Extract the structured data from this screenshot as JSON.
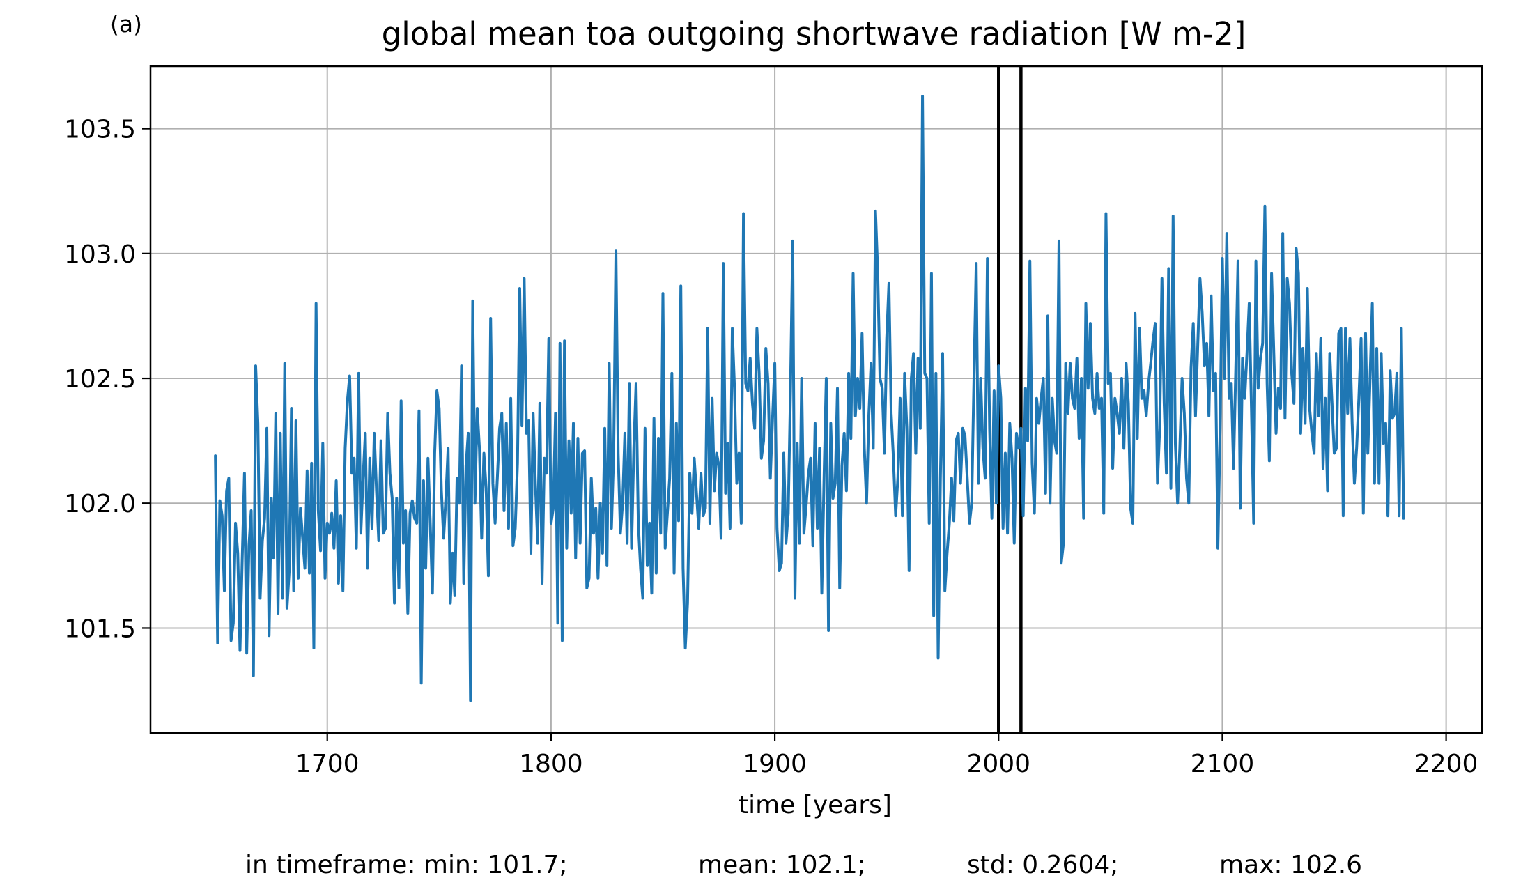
{
  "panel_label": "(a)",
  "stats_line": {
    "min": "in timeframe: min: 101.7;",
    "mean": "mean: 102.1;",
    "std": "std: 0.2604;",
    "max": "max: 102.6"
  },
  "colors": {
    "series": "#1f77b4",
    "grid": "#b0b0b0",
    "marker_lines": "#000000"
  },
  "chart_data": {
    "type": "line",
    "title": "global mean toa outgoing shortwave radiation [W m-2]",
    "xlabel": "time [years]",
    "ylabel": "",
    "xlim": [
      1621,
      2216
    ],
    "ylim": [
      101.08,
      103.75
    ],
    "xticks": [
      1700,
      1800,
      1900,
      2000,
      2100,
      2200
    ],
    "yticks": [
      101.5,
      102.0,
      102.5,
      103.0,
      103.5
    ],
    "ytick_labels": [
      "101.5",
      "102.0",
      "102.5",
      "103.0",
      "103.5"
    ],
    "grid": true,
    "vertical_lines": [
      2000,
      2010
    ],
    "series": [
      {
        "x_start": 1650,
        "x_step": 1,
        "values": [
          102.19,
          101.44,
          102.01,
          101.95,
          101.65,
          102.05,
          102.1,
          101.45,
          101.52,
          101.92,
          101.8,
          101.41,
          101.78,
          102.12,
          101.4,
          101.83,
          101.97,
          101.31,
          102.55,
          102.32,
          101.62,
          101.85,
          101.94,
          102.3,
          101.47,
          102.02,
          101.78,
          102.36,
          101.56,
          102.28,
          101.62,
          102.56,
          101.58,
          101.73,
          102.38,
          101.65,
          102.33,
          101.7,
          101.98,
          101.86,
          101.74,
          102.13,
          101.72,
          102.16,
          101.42,
          102.8,
          101.97,
          101.81,
          102.24,
          101.7,
          101.92,
          101.88,
          101.96,
          101.82,
          102.09,
          101.68,
          101.95,
          101.65,
          102.22,
          102.41,
          102.51,
          102.12,
          102.18,
          101.82,
          102.52,
          101.88,
          102.1,
          102.28,
          101.74,
          102.18,
          101.9,
          102.28,
          102.05,
          101.85,
          102.25,
          101.88,
          101.9,
          102.36,
          102.12,
          102.02,
          101.6,
          102.02,
          101.66,
          102.41,
          101.84,
          101.97,
          101.56,
          101.96,
          102.01,
          101.94,
          101.92,
          102.37,
          101.28,
          102.09,
          101.74,
          102.18,
          101.92,
          101.64,
          102.2,
          102.45,
          102.38,
          102.05,
          101.86,
          102.02,
          102.22,
          101.6,
          101.8,
          101.63,
          102.1,
          102.0,
          102.55,
          101.68,
          102.15,
          102.28,
          101.21,
          102.81,
          102.0,
          102.38,
          102.22,
          101.86,
          102.2,
          102.06,
          101.71,
          102.74,
          102.08,
          101.92,
          102.1,
          102.3,
          102.36,
          101.97,
          102.32,
          101.9,
          102.42,
          101.83,
          101.9,
          102.16,
          102.86,
          102.31,
          102.9,
          102.28,
          102.33,
          101.8,
          102.36,
          102.08,
          101.84,
          102.4,
          101.68,
          102.18,
          102.12,
          102.66,
          101.92,
          101.98,
          102.36,
          101.52,
          102.64,
          101.45,
          102.65,
          101.82,
          102.25,
          101.96,
          102.32,
          101.78,
          102.26,
          101.84,
          102.2,
          102.21,
          101.66,
          101.7,
          102.1,
          101.88,
          101.98,
          101.7,
          102.0,
          101.8,
          102.3,
          101.75,
          102.56,
          101.9,
          102.2,
          103.01,
          102.2,
          101.88,
          102.0,
          102.28,
          101.84,
          102.48,
          101.82,
          102.22,
          102.48,
          101.92,
          101.74,
          101.62,
          102.3,
          101.75,
          101.92,
          101.64,
          102.34,
          101.72,
          102.26,
          101.88,
          102.84,
          101.82,
          101.96,
          102.1,
          102.52,
          101.72,
          102.32,
          101.93,
          102.87,
          101.74,
          101.42,
          101.6,
          102.12,
          101.96,
          102.18,
          102.04,
          101.9,
          102.12,
          101.95,
          101.98,
          102.7,
          101.92,
          102.42,
          102.05,
          102.2,
          102.15,
          101.86,
          102.96,
          102.04,
          102.24,
          101.9,
          102.7,
          102.46,
          102.08,
          102.2,
          101.92,
          103.16,
          102.48,
          102.45,
          102.58,
          102.4,
          102.3,
          102.7,
          102.52,
          102.18,
          102.25,
          102.62,
          102.48,
          102.1,
          102.34,
          102.56,
          101.9,
          101.73,
          101.76,
          102.2,
          101.84,
          101.96,
          102.45,
          103.05,
          101.62,
          102.24,
          101.84,
          102.5,
          101.88,
          101.99,
          102.12,
          102.18,
          101.83,
          102.32,
          101.9,
          102.22,
          101.64,
          102.1,
          102.5,
          101.49,
          102.32,
          102.02,
          102.08,
          102.46,
          101.66,
          102.15,
          102.28,
          102.05,
          102.52,
          102.26,
          102.92,
          102.35,
          102.5,
          102.38,
          102.68,
          102.22,
          102.0,
          102.35,
          102.56,
          102.22,
          103.17,
          102.92,
          102.5,
          102.46,
          102.2,
          102.66,
          102.88,
          102.36,
          102.18,
          101.95,
          102.1,
          102.42,
          101.95,
          102.52,
          102.3,
          101.73,
          102.5,
          102.6,
          102.2,
          102.58,
          102.3,
          103.63,
          102.52,
          102.5,
          101.92,
          102.92,
          101.55,
          102.52,
          101.38,
          102.1,
          102.6,
          101.65,
          101.8,
          101.92,
          102.1,
          101.93,
          102.25,
          102.28,
          102.08,
          102.3,
          102.27,
          102.1,
          101.92,
          102.0,
          102.5,
          102.96,
          102.08,
          102.5,
          102.22,
          102.1,
          102.98,
          102.3,
          101.94,
          102.45,
          102.0,
          102.55,
          102.42,
          101.9,
          102.2,
          101.88,
          102.32,
          102.18,
          101.84,
          102.28,
          102.22,
          102.3,
          101.95,
          102.46,
          102.25,
          102.97,
          102.16,
          101.96,
          102.42,
          102.32,
          102.42,
          102.5,
          102.04,
          102.75,
          102.0,
          102.42,
          102.25,
          102.2,
          103.05,
          101.76,
          101.84,
          102.56,
          102.36,
          102.56,
          102.42,
          102.38,
          102.58,
          102.26,
          102.5,
          101.94,
          102.8,
          102.46,
          102.72,
          102.42,
          102.36,
          102.52,
          102.38,
          102.42,
          101.96,
          103.16,
          102.48,
          102.52,
          102.14,
          102.42,
          102.36,
          102.28,
          102.5,
          102.22,
          102.56,
          102.4,
          101.98,
          101.92,
          102.76,
          102.26,
          102.7,
          102.42,
          102.45,
          102.35,
          102.48,
          102.56,
          102.65,
          102.72,
          102.08,
          102.3,
          102.9,
          102.4,
          102.12,
          102.94,
          102.06,
          103.15,
          102.24,
          102.0,
          102.22,
          102.5,
          102.36,
          102.1,
          102.0,
          102.54,
          102.72,
          102.35,
          102.63,
          102.9,
          102.76,
          102.55,
          102.64,
          102.35,
          102.83,
          102.45,
          102.52,
          101.82,
          102.3,
          102.98,
          102.5,
          103.08,
          102.42,
          102.48,
          102.14,
          102.54,
          102.97,
          101.98,
          102.58,
          102.42,
          102.6,
          102.8,
          102.38,
          101.92,
          102.97,
          102.46,
          102.58,
          102.64,
          103.19,
          102.48,
          102.17,
          102.92,
          102.6,
          102.28,
          102.46,
          102.38,
          103.08,
          102.34,
          102.9,
          102.8,
          102.52,
          102.4,
          103.02,
          102.92,
          102.28,
          102.62,
          102.32,
          102.86,
          102.38,
          102.28,
          102.2,
          102.6,
          102.35,
          102.66,
          102.14,
          102.42,
          102.05,
          102.6,
          102.4,
          102.2,
          102.22,
          102.68,
          102.7,
          101.95,
          102.7,
          102.36,
          102.66,
          102.32,
          102.08,
          102.22,
          102.42,
          102.66,
          101.96,
          102.68,
          102.2,
          102.5,
          102.8,
          102.08,
          102.62,
          102.08,
          102.6,
          102.24,
          102.32,
          101.95,
          102.53,
          102.34,
          102.36,
          102.52,
          101.95,
          102.7,
          101.94
        ]
      }
    ]
  }
}
